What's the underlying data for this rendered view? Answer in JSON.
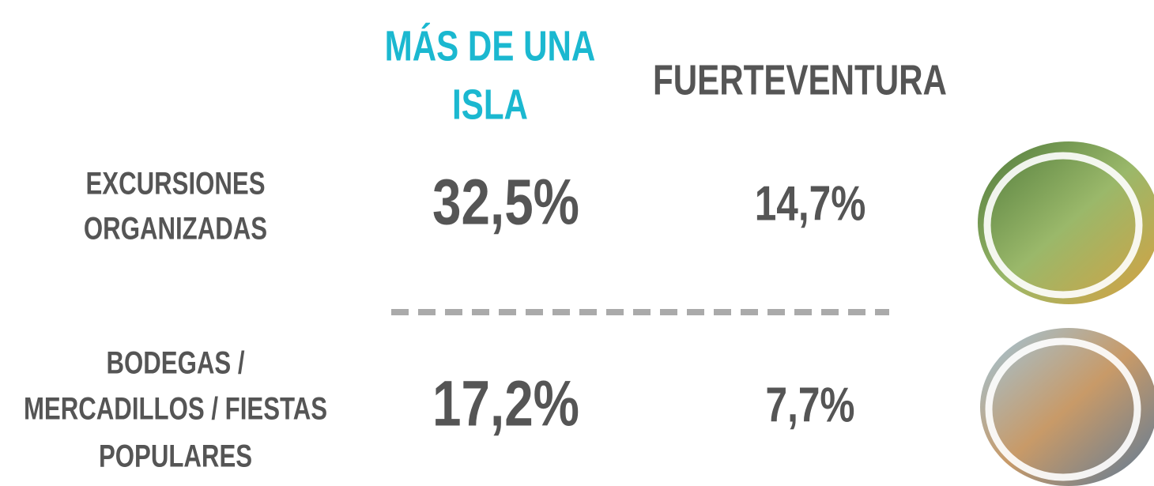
{
  "header": {
    "columns": [
      [
        "MÁS DE UNA",
        "ISLA"
      ],
      [
        "FUERTEVENTURA"
      ]
    ]
  },
  "table": {
    "rows": [
      {
        "label": [
          "EXCURSIONES",
          "ORGANIZADAS"
        ],
        "values": [
          "32,5%",
          "14,7%"
        ]
      },
      {
        "label": [
          "BODEGAS /",
          "MERCADILLOS / FIESTAS",
          "POPULARES"
        ],
        "values": [
          "17,2%",
          "7,7%"
        ]
      }
    ]
  }
}
